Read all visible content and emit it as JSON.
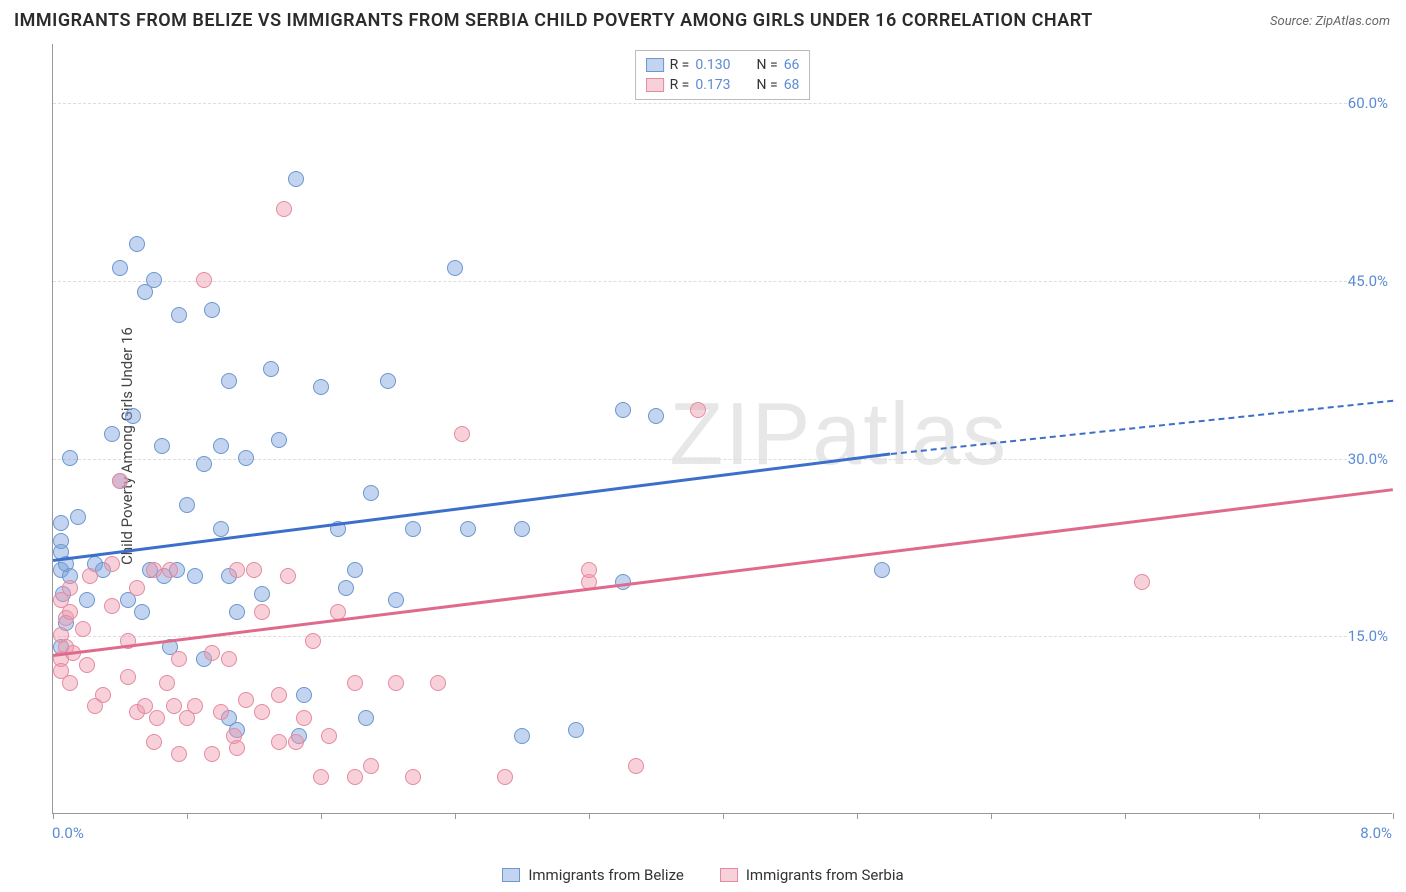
{
  "title": "IMMIGRANTS FROM BELIZE VS IMMIGRANTS FROM SERBIA CHILD POVERTY AMONG GIRLS UNDER 16 CORRELATION CHART",
  "source_prefix": "Source: ",
  "source": "ZipAtlas.com",
  "ylabel": "Child Poverty Among Girls Under 16",
  "watermark": "ZIPatlas",
  "chart": {
    "type": "scatter",
    "background_color": "#ffffff",
    "grid_color": "#dddddd",
    "axis_color": "#999999",
    "xlim": [
      0.0,
      8.0
    ],
    "ylim": [
      0.0,
      65.0
    ],
    "x_tick_positions": [
      0.0,
      0.8,
      1.6,
      2.4,
      3.2,
      4.0,
      4.8,
      5.6,
      6.4,
      7.2,
      8.0
    ],
    "x_min_label": "0.0%",
    "x_max_label": "8.0%",
    "y_ticks": [
      {
        "value": 15.0,
        "label": "15.0%"
      },
      {
        "value": 30.0,
        "label": "30.0%"
      },
      {
        "value": 45.0,
        "label": "45.0%"
      },
      {
        "value": 60.0,
        "label": "60.0%"
      }
    ],
    "series": [
      {
        "key": "belize",
        "label": "Immigrants from Belize",
        "marker_fill": "rgba(120,160,220,0.45)",
        "marker_stroke": "#6d97cf",
        "trend_color": "#3b6fc9",
        "R": "0.130",
        "N": "66",
        "trend": {
          "x1": 0.0,
          "y1": 21.5,
          "x2_solid": 5.0,
          "y2_solid": 30.5,
          "x2_dashed": 8.0,
          "y2_dashed": 35.0
        },
        "points": [
          [
            0.05,
            20.5
          ],
          [
            0.05,
            22.0
          ],
          [
            0.08,
            21.0
          ],
          [
            0.05,
            23.0
          ],
          [
            0.1,
            20.0
          ],
          [
            0.05,
            14.0
          ],
          [
            0.08,
            16.0
          ],
          [
            0.06,
            18.5
          ],
          [
            0.35,
            32.0
          ],
          [
            0.4,
            28.0
          ],
          [
            0.1,
            30.0
          ],
          [
            0.15,
            25.0
          ],
          [
            0.4,
            46.0
          ],
          [
            0.5,
            48.0
          ],
          [
            0.55,
            44.0
          ],
          [
            0.6,
            45.0
          ],
          [
            0.8,
            26.0
          ],
          [
            0.85,
            20.0
          ],
          [
            0.9,
            13.0
          ],
          [
            0.74,
            20.5
          ],
          [
            0.75,
            42.0
          ],
          [
            0.9,
            29.5
          ],
          [
            0.65,
            31.0
          ],
          [
            0.66,
            20.0
          ],
          [
            1.0,
            31.0
          ],
          [
            1.05,
            36.5
          ],
          [
            1.0,
            24.0
          ],
          [
            1.05,
            20.0
          ],
          [
            1.15,
            30.0
          ],
          [
            1.1,
            17.0
          ],
          [
            1.1,
            7.0
          ],
          [
            1.05,
            8.0
          ],
          [
            1.25,
            18.5
          ],
          [
            1.3,
            37.5
          ],
          [
            1.35,
            31.5
          ],
          [
            1.47,
            6.5
          ],
          [
            1.5,
            10.0
          ],
          [
            1.7,
            24.0
          ],
          [
            1.75,
            19.0
          ],
          [
            1.87,
            8.0
          ],
          [
            1.8,
            20.5
          ],
          [
            1.45,
            53.5
          ],
          [
            1.6,
            36.0
          ],
          [
            1.9,
            27.0
          ],
          [
            2.0,
            36.5
          ],
          [
            2.15,
            24.0
          ],
          [
            2.05,
            18.0
          ],
          [
            2.4,
            46.0
          ],
          [
            2.48,
            24.0
          ],
          [
            2.8,
            24.0
          ],
          [
            2.8,
            6.5
          ],
          [
            3.12,
            7.0
          ],
          [
            3.4,
            19.5
          ],
          [
            3.4,
            34.0
          ],
          [
            3.6,
            33.5
          ],
          [
            4.95,
            20.5
          ],
          [
            0.2,
            18.0
          ],
          [
            0.25,
            21.0
          ],
          [
            0.3,
            20.5
          ],
          [
            0.58,
            20.5
          ],
          [
            0.45,
            18.0
          ],
          [
            0.53,
            17.0
          ],
          [
            0.7,
            14.0
          ],
          [
            0.95,
            42.5
          ],
          [
            0.05,
            24.5
          ],
          [
            0.48,
            33.5
          ]
        ]
      },
      {
        "key": "serbia",
        "label": "Immigrants from Serbia",
        "marker_fill": "rgba(240,150,170,0.45)",
        "marker_stroke": "#e48ba1",
        "trend_color": "#e06a8b",
        "R": "0.173",
        "N": "68",
        "trend": {
          "x1": 0.0,
          "y1": 13.5,
          "x2_solid": 8.0,
          "y2_solid": 27.5,
          "x2_dashed": 8.0,
          "y2_dashed": 27.5
        },
        "points": [
          [
            0.05,
            15.0
          ],
          [
            0.05,
            13.0
          ],
          [
            0.08,
            14.0
          ],
          [
            0.05,
            12.0
          ],
          [
            0.1,
            11.0
          ],
          [
            0.08,
            16.5
          ],
          [
            0.1,
            17.0
          ],
          [
            0.12,
            13.5
          ],
          [
            0.05,
            18.0
          ],
          [
            0.1,
            19.0
          ],
          [
            0.2,
            12.5
          ],
          [
            0.22,
            20.0
          ],
          [
            0.3,
            10.0
          ],
          [
            0.25,
            9.0
          ],
          [
            0.35,
            21.0
          ],
          [
            0.4,
            28.0
          ],
          [
            0.35,
            17.5
          ],
          [
            0.45,
            14.5
          ],
          [
            0.45,
            11.5
          ],
          [
            0.5,
            8.5
          ],
          [
            0.55,
            9.0
          ],
          [
            0.62,
            8.0
          ],
          [
            0.6,
            20.5
          ],
          [
            0.6,
            6.0
          ],
          [
            0.7,
            20.5
          ],
          [
            0.68,
            11.0
          ],
          [
            0.72,
            9.0
          ],
          [
            0.75,
            13.0
          ],
          [
            0.75,
            5.0
          ],
          [
            0.85,
            9.0
          ],
          [
            0.9,
            45.0
          ],
          [
            0.8,
            8.0
          ],
          [
            0.95,
            5.0
          ],
          [
            0.95,
            13.5
          ],
          [
            1.05,
            13.0
          ],
          [
            1.0,
            8.5
          ],
          [
            1.08,
            6.5
          ],
          [
            1.1,
            20.5
          ],
          [
            1.1,
            5.5
          ],
          [
            1.15,
            9.5
          ],
          [
            1.2,
            20.5
          ],
          [
            1.25,
            17.0
          ],
          [
            1.25,
            8.5
          ],
          [
            1.35,
            6.0
          ],
          [
            1.35,
            10.0
          ],
          [
            1.4,
            20.0
          ],
          [
            1.38,
            51.0
          ],
          [
            1.45,
            6.0
          ],
          [
            1.5,
            8.0
          ],
          [
            1.55,
            14.5
          ],
          [
            1.6,
            3.0
          ],
          [
            1.65,
            6.5
          ],
          [
            1.7,
            17.0
          ],
          [
            1.8,
            11.0
          ],
          [
            1.8,
            3.0
          ],
          [
            1.9,
            4.0
          ],
          [
            2.05,
            11.0
          ],
          [
            2.15,
            3.0
          ],
          [
            2.3,
            11.0
          ],
          [
            2.44,
            32.0
          ],
          [
            2.7,
            3.0
          ],
          [
            3.2,
            19.5
          ],
          [
            3.2,
            20.5
          ],
          [
            3.48,
            4.0
          ],
          [
            3.85,
            34.0
          ],
          [
            6.5,
            19.5
          ],
          [
            0.5,
            19.0
          ],
          [
            0.18,
            15.5
          ]
        ]
      }
    ]
  },
  "legend_top": {
    "r_label": "R =",
    "n_label": "N ="
  }
}
